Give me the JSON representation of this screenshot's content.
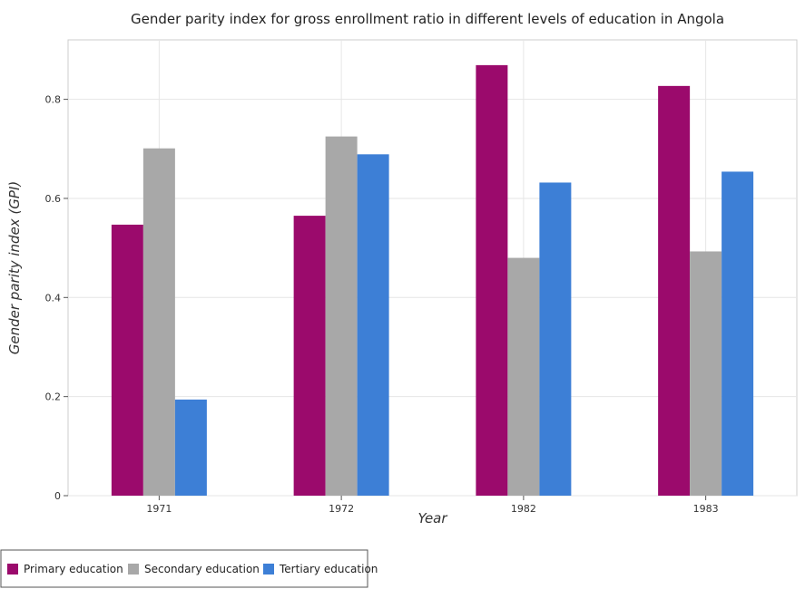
{
  "chart_data": {
    "type": "bar",
    "title": "Gender parity index for gross enrollment ratio in different levels of education in Angola",
    "xlabel": "Year",
    "ylabel": "Gender parity index (GPI)",
    "categories": [
      "1971",
      "1972",
      "1982",
      "1983"
    ],
    "ylim": [
      0,
      0.92
    ],
    "yticks": [
      "0",
      "0.2",
      "0.4",
      "0.6",
      "0.8"
    ],
    "grid": true,
    "legend_position": "bottom-left",
    "series": [
      {
        "name": "Primary education",
        "color": "#9b0a6c",
        "values": [
          0.547,
          0.565,
          0.869,
          0.827
        ]
      },
      {
        "name": "Secondary education",
        "color": "#a8a8a8",
        "values": [
          0.701,
          0.725,
          0.48,
          0.493
        ]
      },
      {
        "name": "Tertiary education",
        "color": "#3d7fd6",
        "values": [
          0.194,
          0.689,
          0.632,
          0.654
        ]
      }
    ]
  }
}
